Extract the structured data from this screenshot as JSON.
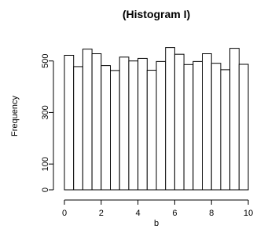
{
  "chart_data": {
    "type": "bar",
    "title": "(Histogram I)",
    "xlabel": "b",
    "ylabel": "Frequency",
    "xlim": [
      0,
      10
    ],
    "ylim": [
      0,
      560
    ],
    "bin_edges": [
      0,
      0.5,
      1,
      1.5,
      2,
      2.5,
      3,
      3.5,
      4,
      4.5,
      5,
      5.5,
      6,
      6.5,
      7,
      7.5,
      8,
      8.5,
      9,
      9.5,
      10
    ],
    "values": [
      522,
      478,
      546,
      528,
      482,
      463,
      515,
      500,
      510,
      464,
      498,
      552,
      526,
      486,
      498,
      528,
      491,
      466,
      549,
      487
    ],
    "x_ticks": [
      0,
      2,
      4,
      6,
      8,
      10
    ],
    "y_ticks": [
      0,
      100,
      300,
      500
    ],
    "grid": false,
    "legend": "none",
    "colors": {
      "bar_fill": "#ffffff",
      "bar_stroke": "#000000"
    }
  }
}
